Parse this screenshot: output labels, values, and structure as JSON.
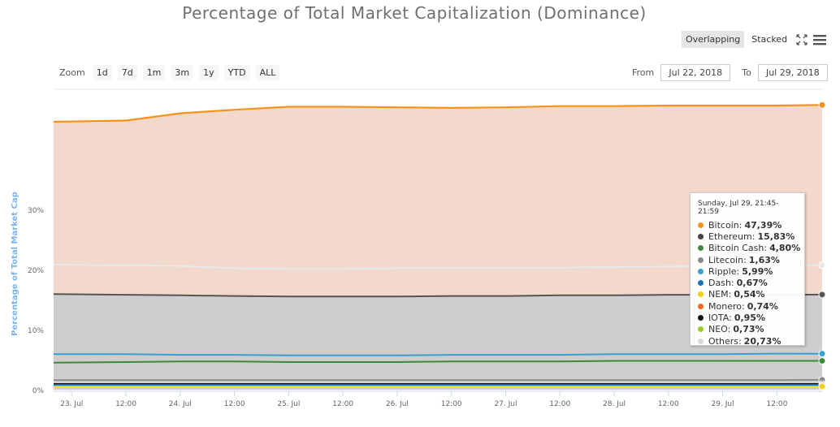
{
  "header": {
    "title": "Percentage of Total Market Capitalization (Dominance)"
  },
  "view_toggle": {
    "overlapping_label": "Overlapping",
    "stacked_label": "Stacked",
    "active": "Overlapping"
  },
  "zoom": {
    "label": "Zoom",
    "buttons": [
      "1d",
      "7d",
      "1m",
      "3m",
      "1y",
      "YTD",
      "ALL"
    ]
  },
  "range": {
    "from_label": "From",
    "from_value": "Jul 22, 2018",
    "to_label": "To",
    "to_value": "Jul 29, 2018"
  },
  "tooltip": {
    "header": "Sunday, Jul 29, 21:45-21:59",
    "rows": [
      {
        "label": "Bitcoin:",
        "value": "47,39%",
        "color": "#f7931a"
      },
      {
        "label": "Ethereum:",
        "value": "15,83%",
        "color": "#434348"
      },
      {
        "label": "Bitcoin Cash:",
        "value": "4,80%",
        "color": "#3c8a3c"
      },
      {
        "label": "Litecoin:",
        "value": "1,63%",
        "color": "#8a8a8a"
      },
      {
        "label": "Ripple:",
        "value": "5,99%",
        "color": "#3aa0d4"
      },
      {
        "label": "Dash:",
        "value": "0,67%",
        "color": "#1c75bc"
      },
      {
        "label": "NEM:",
        "value": "0,54%",
        "color": "#f3d117"
      },
      {
        "label": "Monero:",
        "value": "0,74%",
        "color": "#f26822"
      },
      {
        "label": "IOTA:",
        "value": "0,95%",
        "color": "#111111"
      },
      {
        "label": "NEO:",
        "value": "0,73%",
        "color": "#9acd32"
      },
      {
        "label": "Others:",
        "value": "20,73%",
        "color": "#d8d8d8"
      }
    ]
  },
  "chart_data": {
    "type": "area",
    "title": "Percentage of Total Market Capitalization (Dominance)",
    "ylabel": "Percentage of Total Market Cap",
    "ylim": [
      0,
      50
    ],
    "y_ticks": [
      0,
      10,
      20,
      30
    ],
    "y_tick_labels": [
      "0%",
      "10%",
      "20%",
      "30%"
    ],
    "x_ticks": [
      "23. Jul",
      "12:00",
      "24. Jul",
      "12:00",
      "25. Jul",
      "12:00",
      "26. Jul",
      "12:00",
      "27. Jul",
      "12:00",
      "28. Jul",
      "12:00",
      "29. Jul",
      "12:00"
    ],
    "x_range": [
      "2018-07-22 20:00",
      "2018-07-29 22:00"
    ],
    "x": [
      "2018-07-22 20:00",
      "2018-07-23 12:00",
      "2018-07-24 00:00",
      "2018-07-24 12:00",
      "2018-07-25 00:00",
      "2018-07-25 12:00",
      "2018-07-26 00:00",
      "2018-07-26 12:00",
      "2018-07-27 00:00",
      "2018-07-27 12:00",
      "2018-07-28 00:00",
      "2018-07-28 12:00",
      "2018-07-29 00:00",
      "2018-07-29 12:00",
      "2018-07-29 22:00"
    ],
    "grid": "horizontal",
    "legend": "none",
    "series": [
      {
        "name": "Bitcoin",
        "color": "#f7931a",
        "fill": "#f2d6c9",
        "values": [
          44.6,
          44.8,
          46.0,
          46.6,
          47.1,
          47.1,
          47.0,
          46.9,
          47.0,
          47.2,
          47.2,
          47.3,
          47.3,
          47.3,
          47.39
        ]
      },
      {
        "name": "Others",
        "color": "#e8e8e8",
        "fill": "none",
        "values": [
          20.8,
          20.7,
          20.6,
          20.2,
          20.1,
          20.1,
          20.2,
          20.3,
          20.3,
          20.3,
          20.4,
          20.5,
          20.6,
          20.7,
          20.73
        ]
      },
      {
        "name": "Ethereum",
        "color": "#555555",
        "fill": "#cccccc",
        "values": [
          15.9,
          15.8,
          15.7,
          15.6,
          15.5,
          15.5,
          15.5,
          15.6,
          15.6,
          15.7,
          15.7,
          15.8,
          15.8,
          15.8,
          15.83
        ]
      },
      {
        "name": "Ripple",
        "color": "#3aa0d4",
        "fill": "none",
        "values": [
          5.9,
          5.9,
          5.8,
          5.8,
          5.7,
          5.7,
          5.7,
          5.8,
          5.8,
          5.8,
          5.9,
          5.9,
          5.9,
          6.0,
          5.99
        ]
      },
      {
        "name": "Bitcoin Cash",
        "color": "#3c8a3c",
        "fill": "none",
        "values": [
          4.5,
          4.6,
          4.7,
          4.7,
          4.6,
          4.6,
          4.6,
          4.7,
          4.7,
          4.7,
          4.8,
          4.8,
          4.8,
          4.8,
          4.8
        ]
      },
      {
        "name": "Litecoin",
        "color": "#8a8a8a",
        "fill": "none",
        "values": [
          1.6,
          1.6,
          1.6,
          1.6,
          1.6,
          1.6,
          1.6,
          1.6,
          1.6,
          1.6,
          1.6,
          1.6,
          1.6,
          1.6,
          1.63
        ]
      },
      {
        "name": "IOTA",
        "color": "#111111",
        "fill": "none",
        "values": [
          0.95,
          0.95,
          0.95,
          0.95,
          0.95,
          0.95,
          0.95,
          0.95,
          0.95,
          0.95,
          0.95,
          0.95,
          0.95,
          0.95,
          0.95
        ]
      },
      {
        "name": "Monero",
        "color": "#f26822",
        "fill": "none",
        "values": [
          0.74,
          0.74,
          0.74,
          0.74,
          0.74,
          0.74,
          0.74,
          0.74,
          0.74,
          0.74,
          0.74,
          0.74,
          0.74,
          0.74,
          0.74
        ]
      },
      {
        "name": "NEO",
        "color": "#9acd32",
        "fill": "none",
        "values": [
          0.73,
          0.73,
          0.73,
          0.73,
          0.73,
          0.73,
          0.73,
          0.73,
          0.73,
          0.73,
          0.73,
          0.73,
          0.73,
          0.73,
          0.73
        ]
      },
      {
        "name": "Dash",
        "color": "#1c75bc",
        "fill": "none",
        "values": [
          0.67,
          0.67,
          0.67,
          0.67,
          0.67,
          0.67,
          0.67,
          0.67,
          0.67,
          0.67,
          0.67,
          0.67,
          0.67,
          0.67,
          0.67
        ]
      },
      {
        "name": "NEM",
        "color": "#f3d117",
        "fill": "none",
        "values": [
          0.54,
          0.54,
          0.54,
          0.54,
          0.54,
          0.54,
          0.54,
          0.54,
          0.54,
          0.54,
          0.54,
          0.54,
          0.54,
          0.54,
          0.54
        ]
      }
    ]
  }
}
